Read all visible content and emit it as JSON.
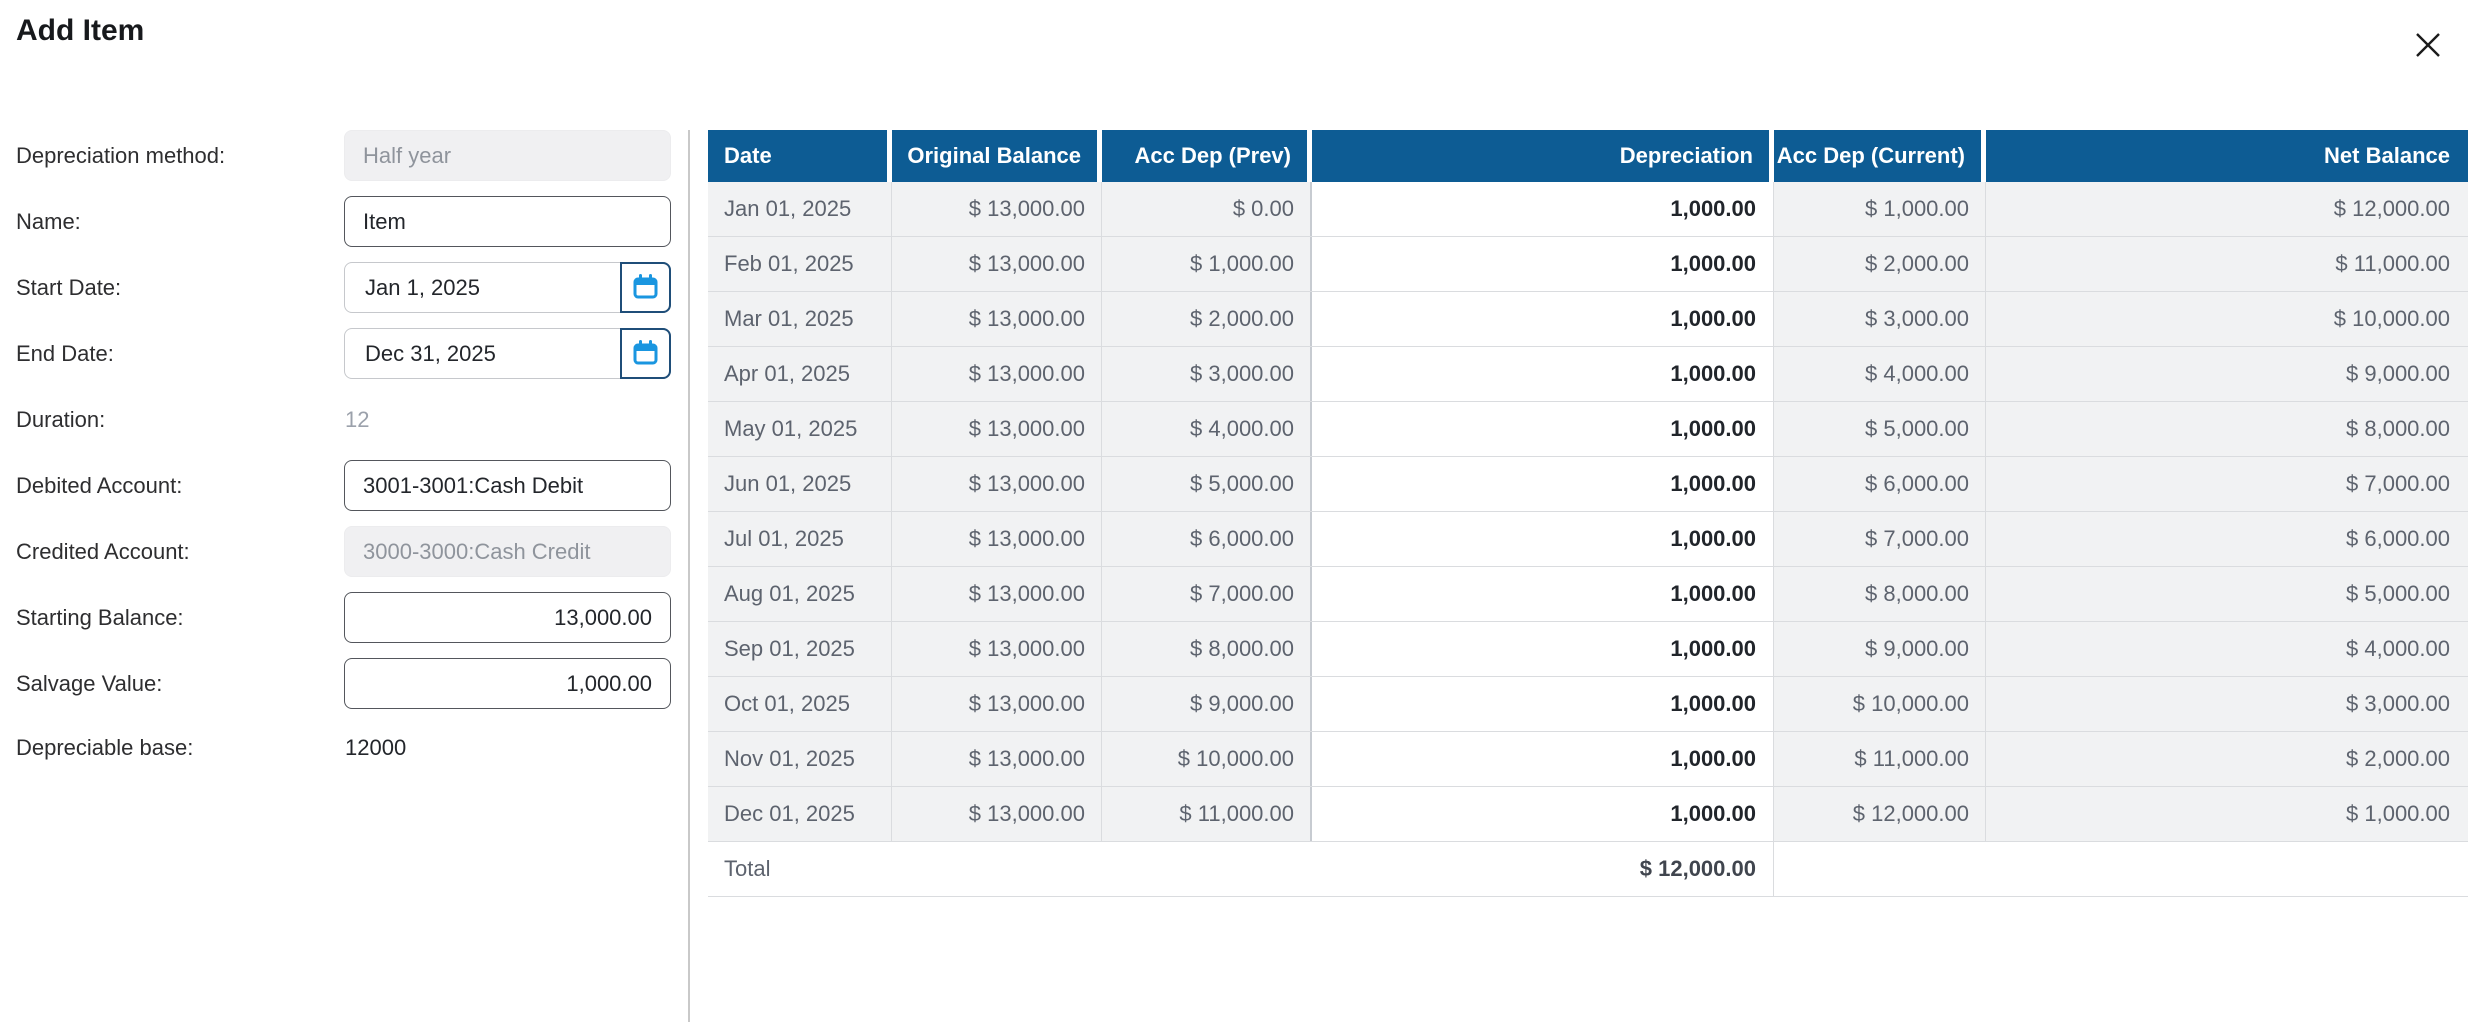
{
  "modal": {
    "title": "Add Item"
  },
  "form": {
    "fields": [
      {
        "label": "Depreciation method:",
        "value": "Half year",
        "type": "disabled"
      },
      {
        "label": "Name:",
        "value": "Item",
        "type": "text"
      },
      {
        "label": "Start Date:",
        "value": "Jan 1, 2025",
        "type": "date"
      },
      {
        "label": "End Date:",
        "value": "Dec 31, 2025",
        "type": "date"
      },
      {
        "label": "Duration:",
        "value": "12",
        "type": "static-muted"
      },
      {
        "label": "Debited Account:",
        "value": "3001-3001:Cash Debit",
        "type": "text"
      },
      {
        "label": "Credited Account:",
        "value": "3000-3000:Cash Credit",
        "type": "disabled"
      },
      {
        "label": "Starting Balance:",
        "value": "13,000.00",
        "type": "number"
      },
      {
        "label": "Salvage Value:",
        "value": "1,000.00",
        "type": "number"
      },
      {
        "label": "Depreciable base:",
        "value": "12000",
        "type": "static"
      }
    ]
  },
  "table": {
    "columns": [
      "Date",
      "Original Balance",
      "Acc Dep (Prev)",
      "Depreciation",
      "Acc Dep (Current)",
      "Net Balance"
    ],
    "rows": [
      {
        "date": "Jan 01, 2025",
        "original_balance": "$ 13,000.00",
        "acc_dep_prev": "$ 0.00",
        "depreciation": "1,000.00",
        "acc_dep_current": "$ 1,000.00",
        "net_balance": "$ 12,000.00"
      },
      {
        "date": "Feb 01, 2025",
        "original_balance": "$ 13,000.00",
        "acc_dep_prev": "$ 1,000.00",
        "depreciation": "1,000.00",
        "acc_dep_current": "$ 2,000.00",
        "net_balance": "$ 11,000.00"
      },
      {
        "date": "Mar 01, 2025",
        "original_balance": "$ 13,000.00",
        "acc_dep_prev": "$ 2,000.00",
        "depreciation": "1,000.00",
        "acc_dep_current": "$ 3,000.00",
        "net_balance": "$ 10,000.00"
      },
      {
        "date": "Apr 01, 2025",
        "original_balance": "$ 13,000.00",
        "acc_dep_prev": "$ 3,000.00",
        "depreciation": "1,000.00",
        "acc_dep_current": "$ 4,000.00",
        "net_balance": "$ 9,000.00"
      },
      {
        "date": "May 01, 2025",
        "original_balance": "$ 13,000.00",
        "acc_dep_prev": "$ 4,000.00",
        "depreciation": "1,000.00",
        "acc_dep_current": "$ 5,000.00",
        "net_balance": "$ 8,000.00"
      },
      {
        "date": "Jun 01, 2025",
        "original_balance": "$ 13,000.00",
        "acc_dep_prev": "$ 5,000.00",
        "depreciation": "1,000.00",
        "acc_dep_current": "$ 6,000.00",
        "net_balance": "$ 7,000.00"
      },
      {
        "date": "Jul 01, 2025",
        "original_balance": "$ 13,000.00",
        "acc_dep_prev": "$ 6,000.00",
        "depreciation": "1,000.00",
        "acc_dep_current": "$ 7,000.00",
        "net_balance": "$ 6,000.00"
      },
      {
        "date": "Aug 01, 2025",
        "original_balance": "$ 13,000.00",
        "acc_dep_prev": "$ 7,000.00",
        "depreciation": "1,000.00",
        "acc_dep_current": "$ 8,000.00",
        "net_balance": "$ 5,000.00"
      },
      {
        "date": "Sep 01, 2025",
        "original_balance": "$ 13,000.00",
        "acc_dep_prev": "$ 8,000.00",
        "depreciation": "1,000.00",
        "acc_dep_current": "$ 9,000.00",
        "net_balance": "$ 4,000.00"
      },
      {
        "date": "Oct 01, 2025",
        "original_balance": "$ 13,000.00",
        "acc_dep_prev": "$ 9,000.00",
        "depreciation": "1,000.00",
        "acc_dep_current": "$ 10,000.00",
        "net_balance": "$ 3,000.00"
      },
      {
        "date": "Nov 01, 2025",
        "original_balance": "$ 13,000.00",
        "acc_dep_prev": "$ 10,000.00",
        "depreciation": "1,000.00",
        "acc_dep_current": "$ 11,000.00",
        "net_balance": "$ 2,000.00"
      },
      {
        "date": "Dec 01, 2025",
        "original_balance": "$ 13,000.00",
        "acc_dep_prev": "$ 11,000.00",
        "depreciation": "1,000.00",
        "acc_dep_current": "$ 12,000.00",
        "net_balance": "$ 1,000.00"
      }
    ],
    "total": {
      "label": "Total",
      "depreciation": "$ 12,000.00"
    }
  },
  "colors": {
    "header_blue": "#0d5c94",
    "row_grey": "#f1f2f3",
    "calendar_border_navy": "#1f4e79",
    "calendar_glyph_blue": "#1a96e0"
  }
}
